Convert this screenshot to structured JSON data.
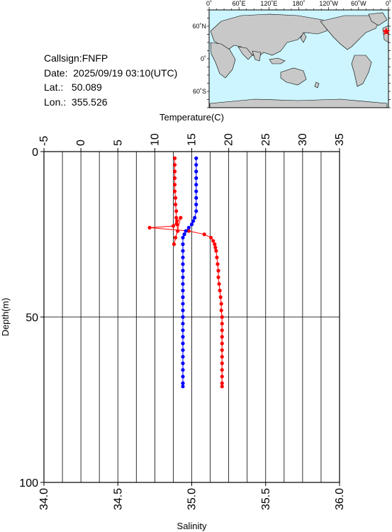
{
  "info": {
    "callsign": "Callsign:FNFP",
    "date": "Date:  2025/09/19 03:10(UTC)",
    "lat": "Lat.:   50.089",
    "lon": "Lon.:  355.526"
  },
  "map": {
    "top_labels": [
      "0˚",
      "60˚E",
      "120˚E",
      "180˚",
      "120˚W",
      "60˚W",
      "0˚"
    ],
    "left_labels": [
      "60˚N",
      "0˚",
      "60˚S"
    ],
    "ocean_color": "#ccf5ff",
    "land_color": "#c8c8c8",
    "marker_icon": "star-icon",
    "marker_color": "#ff0000"
  },
  "chart_data": {
    "type": "line",
    "title": "",
    "xlabel_top": "Temperature(C)",
    "xlabel_bottom": "Salinity",
    "ylabel": "Depth(m)",
    "temperature_ticks": [
      "-5",
      "0",
      "5",
      "10",
      "15",
      "20",
      "25",
      "30",
      "35"
    ],
    "salinity_ticks": [
      "34.0",
      "34.5",
      "35.0",
      "35.5",
      "36.0"
    ],
    "depth_ticks": [
      "0",
      "50",
      "100"
    ],
    "temperature_range": [
      -5,
      35
    ],
    "salinity_range": [
      34.0,
      36.0
    ],
    "depth_range": [
      0,
      100
    ],
    "grid": true,
    "series": [
      {
        "quantity": "temperature",
        "color": "#ff0000",
        "points": [
          [
            12.7,
            2
          ],
          [
            12.7,
            4
          ],
          [
            12.7,
            6
          ],
          [
            12.7,
            8
          ],
          [
            12.7,
            10
          ],
          [
            12.7,
            12
          ],
          [
            12.8,
            14
          ],
          [
            12.8,
            16
          ],
          [
            12.9,
            18
          ],
          [
            12.9,
            20
          ],
          [
            13.0,
            22
          ],
          [
            13.1,
            24
          ],
          [
            12.8,
            26
          ],
          [
            12.6,
            28
          ],
          [
            13.5,
            20
          ],
          [
            13.0,
            21
          ],
          [
            12.5,
            22.5
          ],
          [
            9.3,
            23
          ],
          [
            14.6,
            24
          ],
          [
            16.7,
            25
          ],
          [
            17.6,
            26
          ],
          [
            17.9,
            27
          ],
          [
            18.1,
            28
          ],
          [
            18.2,
            29
          ],
          [
            18.3,
            30
          ],
          [
            18.4,
            32
          ],
          [
            18.5,
            34
          ],
          [
            18.6,
            36
          ],
          [
            18.6,
            38
          ],
          [
            18.7,
            40
          ],
          [
            18.8,
            42
          ],
          [
            18.9,
            44
          ],
          [
            19.0,
            46
          ],
          [
            19.0,
            48
          ],
          [
            19.1,
            50
          ],
          [
            19.1,
            52
          ],
          [
            19.1,
            54
          ],
          [
            19.1,
            56
          ],
          [
            19.1,
            58
          ],
          [
            19.1,
            60
          ],
          [
            19.1,
            62
          ],
          [
            19.1,
            64
          ],
          [
            19.1,
            66
          ],
          [
            19.1,
            68
          ],
          [
            19.1,
            70
          ],
          [
            19.1,
            71
          ]
        ]
      },
      {
        "quantity": "salinity",
        "color": "#0000ff",
        "points": [
          [
            35.03,
            2
          ],
          [
            35.03,
            4
          ],
          [
            35.03,
            6
          ],
          [
            35.03,
            8
          ],
          [
            35.03,
            10
          ],
          [
            35.03,
            12
          ],
          [
            35.03,
            14
          ],
          [
            35.03,
            16
          ],
          [
            35.03,
            18
          ],
          [
            35.02,
            20
          ],
          [
            35.01,
            21
          ],
          [
            35.0,
            22
          ],
          [
            34.98,
            23
          ],
          [
            34.96,
            24
          ],
          [
            34.95,
            25
          ],
          [
            34.94,
            26
          ],
          [
            34.94,
            28
          ],
          [
            34.94,
            30
          ],
          [
            34.94,
            32
          ],
          [
            34.94,
            34
          ],
          [
            34.94,
            36
          ],
          [
            34.94,
            38
          ],
          [
            34.94,
            40
          ],
          [
            34.94,
            42
          ],
          [
            34.94,
            44
          ],
          [
            34.94,
            46
          ],
          [
            34.94,
            48
          ],
          [
            34.94,
            50
          ],
          [
            34.94,
            52
          ],
          [
            34.94,
            54
          ],
          [
            34.94,
            56
          ],
          [
            34.94,
            58
          ],
          [
            34.94,
            60
          ],
          [
            34.94,
            62
          ],
          [
            34.94,
            64
          ],
          [
            34.94,
            66
          ],
          [
            34.94,
            68
          ],
          [
            34.94,
            70
          ],
          [
            34.94,
            71
          ]
        ]
      }
    ]
  }
}
